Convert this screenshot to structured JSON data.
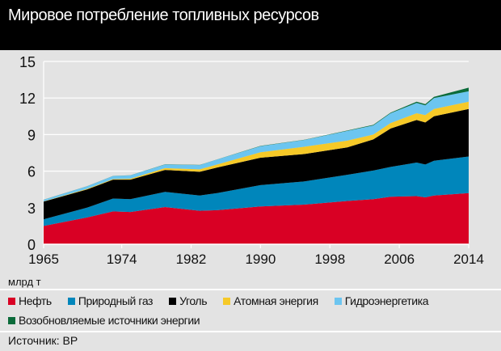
{
  "header": {
    "title": "Мировое потребление топливных ресурсов"
  },
  "chart_data": {
    "type": "area",
    "stacked": true,
    "title": "Мировое потребление топливных ресурсов",
    "ylabel": "млрд т",
    "xlabel": "",
    "xlim": [
      1965,
      2014
    ],
    "ylim": [
      0,
      15
    ],
    "x_ticks": [
      "1965",
      "1974",
      "1982",
      "1990",
      "1998",
      "2006",
      "2014"
    ],
    "y_ticks": [
      "0",
      "3",
      "6",
      "9",
      "12",
      "15"
    ],
    "grid": true,
    "legend_placement": "bottom",
    "x": [
      1965,
      1970,
      1973,
      1975,
      1979,
      1983,
      1985,
      1990,
      1995,
      2000,
      2003,
      2005,
      2008,
      2009,
      2010,
      2014
    ],
    "series": [
      {
        "name": "Нефть",
        "color": "#d90024",
        "values": [
          1.5,
          2.2,
          2.7,
          2.65,
          3.05,
          2.75,
          2.8,
          3.1,
          3.25,
          3.55,
          3.7,
          3.9,
          3.95,
          3.85,
          4.0,
          4.2
        ]
      },
      {
        "name": "Природный газ",
        "color": "#0086bb",
        "values": [
          0.55,
          0.8,
          1.05,
          1.05,
          1.25,
          1.25,
          1.4,
          1.75,
          1.9,
          2.15,
          2.35,
          2.45,
          2.75,
          2.7,
          2.85,
          3.0
        ]
      },
      {
        "name": "Уголь",
        "color": "#000000",
        "values": [
          1.45,
          1.5,
          1.55,
          1.6,
          1.8,
          1.95,
          2.1,
          2.25,
          2.25,
          2.25,
          2.55,
          3.15,
          3.5,
          3.45,
          3.65,
          3.9
        ]
      },
      {
        "name": "Атомная энергия",
        "color": "#f6c928",
        "values": [
          0.02,
          0.05,
          0.05,
          0.08,
          0.15,
          0.2,
          0.25,
          0.45,
          0.6,
          0.55,
          0.4,
          0.45,
          0.55,
          0.6,
          0.6,
          0.6
        ]
      },
      {
        "name": "Гидроэнергетика",
        "color": "#6cc5f0",
        "values": [
          0.13,
          0.2,
          0.25,
          0.27,
          0.3,
          0.35,
          0.4,
          0.5,
          0.55,
          0.8,
          0.75,
          0.8,
          0.85,
          0.8,
          0.9,
          0.85
        ]
      },
      {
        "name": "Возобновляемые источники энергии",
        "color": "#0b6b3a",
        "values": [
          0.01,
          0.01,
          0.01,
          0.01,
          0.01,
          0.01,
          0.01,
          0.02,
          0.02,
          0.03,
          0.05,
          0.05,
          0.1,
          0.1,
          0.1,
          0.3
        ]
      }
    ]
  },
  "source": "Источник: BP"
}
